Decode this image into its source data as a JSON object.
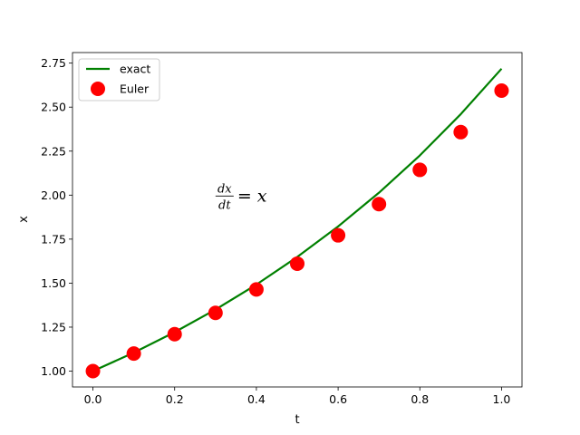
{
  "chart_data": {
    "type": "line",
    "title": "",
    "xlabel": "t",
    "ylabel": "x",
    "xlim": [
      -0.05,
      1.05
    ],
    "ylim": [
      0.91,
      2.81
    ],
    "xticks": [
      0.0,
      0.2,
      0.4,
      0.6,
      0.8,
      1.0
    ],
    "xtick_labels": [
      "0.0",
      "0.2",
      "0.4",
      "0.6",
      "0.8",
      "1.0"
    ],
    "yticks": [
      1.0,
      1.25,
      1.5,
      1.75,
      2.0,
      2.25,
      2.5,
      2.75
    ],
    "ytick_labels": [
      "1.00",
      "1.25",
      "1.50",
      "1.75",
      "2.00",
      "2.25",
      "2.50",
      "2.75"
    ],
    "grid": false,
    "legend_position": "top-left",
    "series": [
      {
        "name": "exact",
        "kind": "line",
        "color": "#008000",
        "x": [
          0.0,
          0.1,
          0.2,
          0.3,
          0.4,
          0.5,
          0.6,
          0.7,
          0.8,
          0.9,
          1.0
        ],
        "y": [
          1.0,
          1.1052,
          1.2214,
          1.3499,
          1.4918,
          1.6487,
          1.8221,
          2.0138,
          2.2255,
          2.4596,
          2.7183
        ]
      },
      {
        "name": "Euler",
        "kind": "scatter",
        "color": "#ff0000",
        "x": [
          0.0,
          0.1,
          0.2,
          0.3,
          0.4,
          0.5,
          0.6,
          0.7,
          0.8,
          0.9,
          1.0
        ],
        "y": [
          1.0,
          1.1,
          1.21,
          1.331,
          1.4641,
          1.6105,
          1.7716,
          1.9487,
          2.1436,
          2.3579,
          2.5937
        ]
      }
    ],
    "annotations": [
      {
        "numerator": "dx",
        "denominator": "dt",
        "rhs": "= x",
        "x": 0.3,
        "y": 2.0
      }
    ]
  }
}
